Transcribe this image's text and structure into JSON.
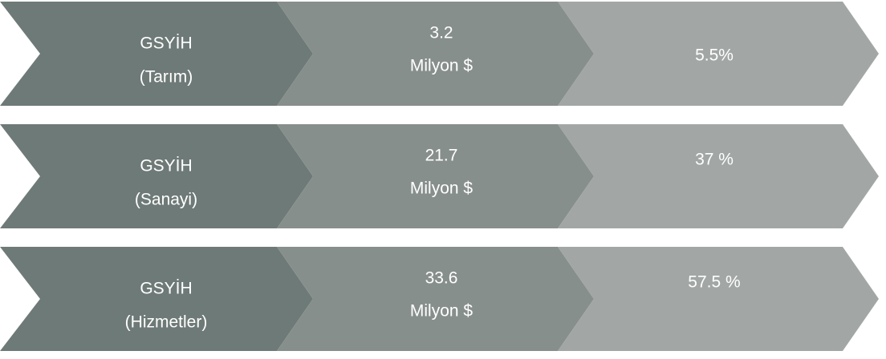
{
  "rows": [
    {
      "label": [
        "GSYİH",
        "(Tarım)"
      ],
      "value": [
        "3.2",
        "Milyon $"
      ],
      "share": "5.5%"
    },
    {
      "label": [
        "GSYİH",
        "(Sanayi)"
      ],
      "value": [
        "21.7",
        "Milyon $"
      ],
      "share": "37 %"
    },
    {
      "label": [
        "GSYİH",
        "(Hizmetler)"
      ],
      "value": [
        "33.6",
        "Milyon $"
      ],
      "share": "57.5 %"
    }
  ]
}
